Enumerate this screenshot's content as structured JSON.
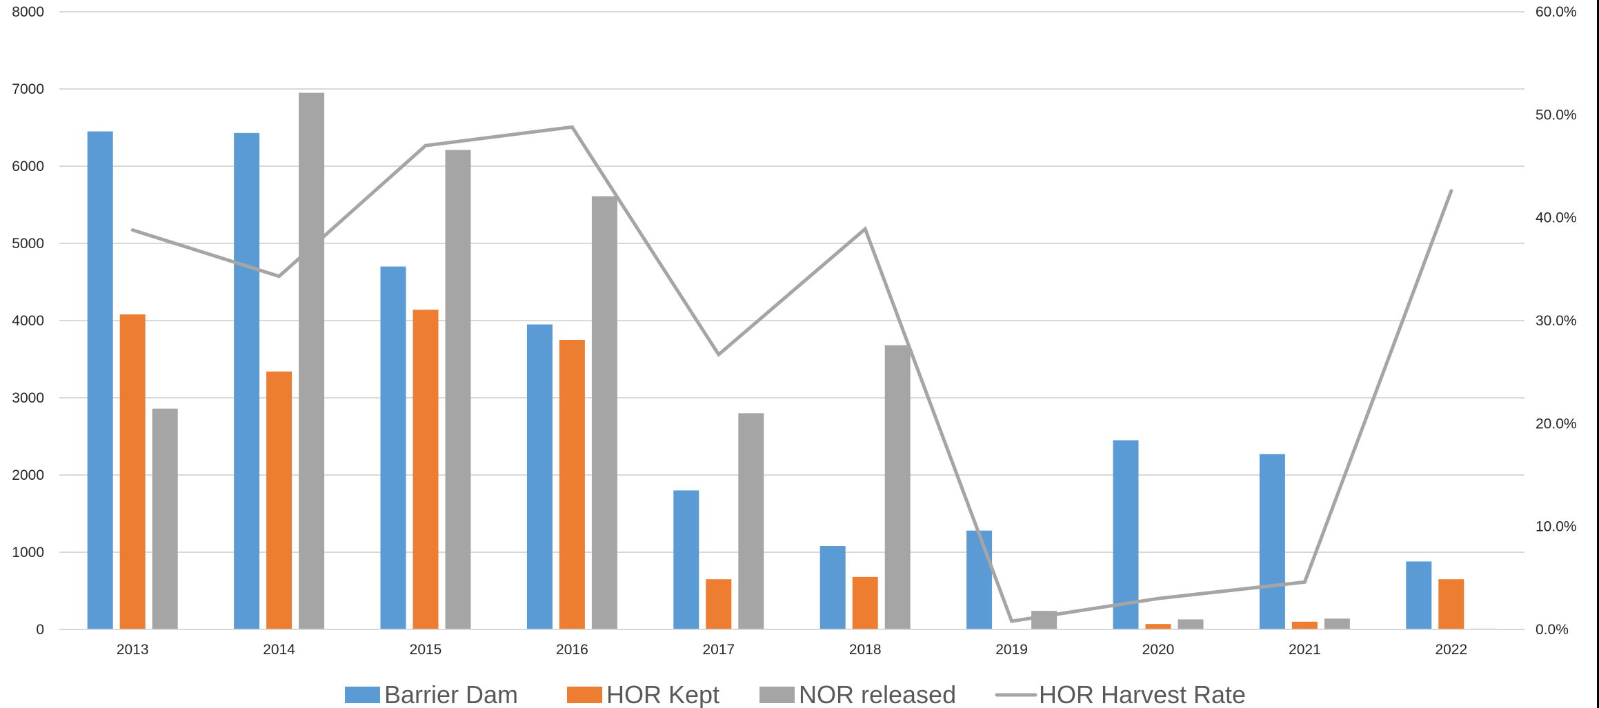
{
  "chart_data": {
    "type": "bar",
    "categories": [
      "2013",
      "2014",
      "2015",
      "2016",
      "2017",
      "2018",
      "2019",
      "2020",
      "2021",
      "2022"
    ],
    "series": [
      {
        "name": "Barrier Dam",
        "type": "bar",
        "axis": "left",
        "color": "#5B9BD5",
        "values": [
          6450,
          6430,
          4700,
          3950,
          1800,
          1080,
          1280,
          2450,
          2270,
          880
        ]
      },
      {
        "name": "HOR Kept",
        "type": "bar",
        "axis": "left",
        "color": "#ED7D31",
        "values": [
          4080,
          3340,
          4140,
          3750,
          650,
          680,
          0,
          70,
          100,
          650
        ]
      },
      {
        "name": "NOR released",
        "type": "bar",
        "axis": "left",
        "color": "#A5A5A5",
        "values": [
          2860,
          6950,
          6210,
          5610,
          2800,
          3680,
          240,
          130,
          140,
          10
        ]
      },
      {
        "name": "HOR Harvest Rate",
        "type": "line",
        "axis": "right",
        "color": "#A5A5A5",
        "values": [
          38.8,
          34.3,
          47.0,
          48.8,
          26.7,
          38.9,
          0.8,
          3.0,
          4.6,
          42.6
        ]
      }
    ],
    "left_axis": {
      "ylim": [
        0,
        8000
      ],
      "ticks": [
        "0",
        "1000",
        "2000",
        "3000",
        "4000",
        "5000",
        "6000",
        "7000",
        "8000"
      ]
    },
    "right_axis": {
      "ylim": [
        0,
        60
      ],
      "ticks": [
        "0.0%",
        "10.0%",
        "20.0%",
        "30.0%",
        "40.0%",
        "50.0%",
        "60.0%"
      ]
    },
    "title": "",
    "xlabel": "",
    "ylabel": "",
    "grid": true,
    "legend_position": "bottom"
  }
}
